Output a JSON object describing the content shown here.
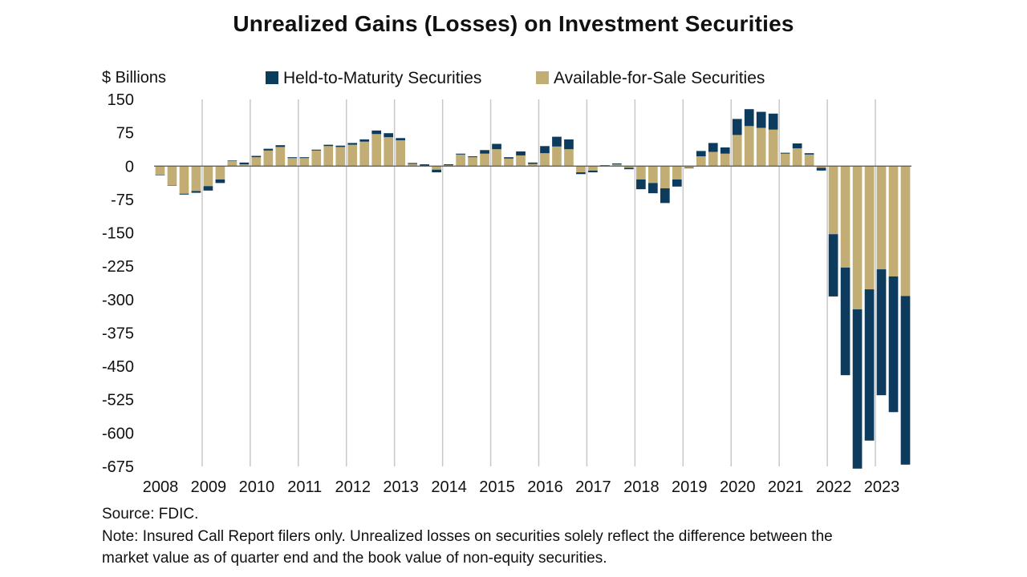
{
  "chart_data": {
    "type": "bar",
    "stacked": true,
    "title": "Unrealized Gains (Losses) on Investment Securities",
    "ylabel": "$ Billions",
    "xlabel": "",
    "ylim": [
      -675,
      150
    ],
    "yticks": [
      150,
      75,
      0,
      -75,
      -150,
      -225,
      -300,
      -375,
      -450,
      -525,
      -600,
      -675
    ],
    "ytick_labels": [
      "150",
      "75",
      "0",
      "-75",
      "-150",
      "-225",
      "-300",
      "-375",
      "-450",
      "-525",
      "-600",
      "-675"
    ],
    "x_tick_labels": [
      "2008",
      "2009",
      "2010",
      "2011",
      "2012",
      "2013",
      "2014",
      "2015",
      "2016",
      "2017",
      "2018",
      "2019",
      "2020",
      "2021",
      "2022",
      "2023"
    ],
    "legend": {
      "position": "top-center",
      "entries": [
        "Held-to-Maturity Securities",
        "Available-for-Sale Securities"
      ]
    },
    "grid": "vertical",
    "colors": {
      "htm": "#0d3b5e",
      "afs": "#c2ae74",
      "grid": "#c8c8c8",
      "axis": "#555555"
    },
    "categories": [
      "2008Q1",
      "2008Q2",
      "2008Q3",
      "2008Q4",
      "2009Q1",
      "2009Q2",
      "2009Q3",
      "2009Q4",
      "2010Q1",
      "2010Q2",
      "2010Q3",
      "2010Q4",
      "2011Q1",
      "2011Q2",
      "2011Q3",
      "2011Q4",
      "2012Q1",
      "2012Q2",
      "2012Q3",
      "2012Q4",
      "2013Q1",
      "2013Q2",
      "2013Q3",
      "2013Q4",
      "2014Q1",
      "2014Q2",
      "2014Q3",
      "2014Q4",
      "2015Q1",
      "2015Q2",
      "2015Q3",
      "2015Q4",
      "2016Q1",
      "2016Q2",
      "2016Q3",
      "2016Q4",
      "2017Q1",
      "2017Q2",
      "2017Q3",
      "2017Q4",
      "2018Q1",
      "2018Q2",
      "2018Q3",
      "2018Q4",
      "2019Q1",
      "2019Q2",
      "2019Q3",
      "2019Q4",
      "2020Q1",
      "2020Q2",
      "2020Q3",
      "2020Q4",
      "2021Q1",
      "2021Q2",
      "2021Q3",
      "2021Q4",
      "2022Q1",
      "2022Q2",
      "2022Q3",
      "2022Q4",
      "2023Q1",
      "2023Q2",
      "2023Q3"
    ],
    "series": [
      {
        "name": "Available-for-Sale Securities",
        "values": [
          -20,
          -43,
          -62,
          -56,
          -45,
          -30,
          12,
          4,
          20,
          35,
          43,
          18,
          18,
          35,
          45,
          43,
          48,
          55,
          72,
          65,
          58,
          5,
          4,
          -8,
          4,
          26,
          20,
          28,
          38,
          17,
          24,
          5,
          29,
          44,
          38,
          -14,
          -10,
          2,
          4,
          -4,
          -30,
          -38,
          -50,
          -30,
          -4,
          22,
          32,
          28,
          70,
          90,
          86,
          82,
          28,
          40,
          26,
          -4,
          -153,
          -228,
          -322,
          -277,
          -232,
          -248,
          -292
        ]
      },
      {
        "name": "Held-to-Maturity Securities",
        "values": [
          0,
          -1,
          -2,
          -4,
          -10,
          -8,
          1,
          4,
          3,
          4,
          4,
          2,
          2,
          2,
          3,
          3,
          4,
          5,
          8,
          9,
          5,
          2,
          -3,
          -6,
          -2,
          2,
          2,
          8,
          12,
          3,
          9,
          3,
          16,
          22,
          22,
          -4,
          -4,
          0,
          2,
          -3,
          -22,
          -23,
          -33,
          -16,
          -1,
          12,
          20,
          14,
          36,
          38,
          36,
          36,
          2,
          11,
          3,
          -6,
          -140,
          -242,
          -358,
          -340,
          -283,
          -305,
          -379
        ]
      }
    ]
  },
  "footer": {
    "source": "Source: FDIC.",
    "note_line1": "Note: Insured Call Report filers only. Unrealized losses on securities solely reflect the difference between the",
    "note_line2": "market value as of quarter end and the book value of non-equity securities."
  }
}
